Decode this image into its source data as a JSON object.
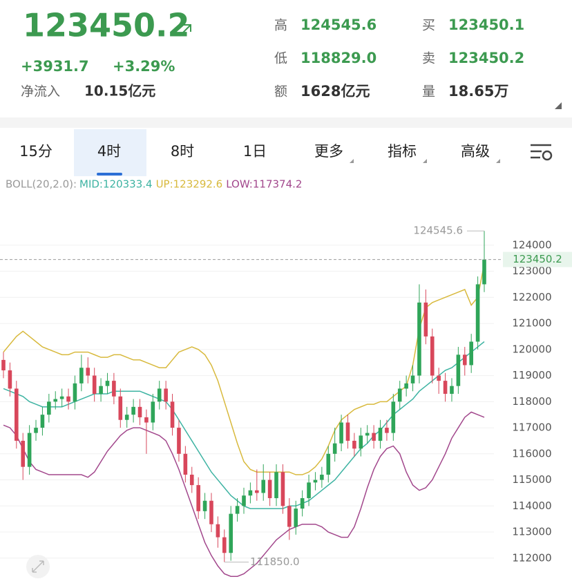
{
  "header": {
    "price": "123450.2",
    "change": "+3931.7",
    "change_pct": "+3.29%",
    "netflow_label": "净流入",
    "netflow_value": "10.15亿元",
    "stats": [
      {
        "label": "高",
        "value": "124545.6"
      },
      {
        "label": "低",
        "value": "118829.0"
      },
      {
        "label": "额",
        "value": "1628亿元"
      },
      {
        "label": "买",
        "value": "123450.1"
      },
      {
        "label": "卖",
        "value": "123450.2"
      },
      {
        "label": "量",
        "value": "18.65万"
      }
    ]
  },
  "tabs": {
    "items": [
      "15分",
      "4时",
      "8时",
      "1日",
      "更多",
      "指标",
      "高级"
    ],
    "active": 1
  },
  "chart_data": {
    "type": "candlestick",
    "indicator_label": "BOLL(20,2.0):",
    "up_color": "#2fa559",
    "down_color": "#d8475b",
    "open": [
      119600,
      119200,
      118500,
      116500,
      115500,
      116800,
      117000,
      117500,
      118000,
      118100,
      118200,
      118000,
      118700,
      119300,
      119000,
      118300,
      118600,
      118800,
      118200,
      117300,
      117500,
      117800,
      117400,
      117200,
      118000,
      118500,
      118000,
      117000,
      116000,
      115200,
      114800,
      113800,
      114200,
      113300,
      112800,
      112200,
      113700,
      114000,
      114400,
      114600,
      114500,
      115000,
      114300,
      115300,
      114000,
      113200,
      113900,
      114300,
      114900,
      115000,
      115200,
      116000,
      116400,
      117200,
      116500,
      116200,
      116700,
      116800,
      116500,
      117000,
      116800,
      118000,
      118500,
      118700,
      119000,
      121800,
      120500,
      119000,
      118800,
      118300,
      118600,
      119800,
      119400,
      120300,
      122500
    ],
    "high": [
      119900,
      119500,
      118800,
      116800,
      117100,
      117300,
      117800,
      118300,
      118400,
      118500,
      118500,
      119000,
      119800,
      119700,
      119300,
      118900,
      119100,
      119100,
      118500,
      117800,
      118100,
      118100,
      117700,
      118300,
      118800,
      118800,
      118300,
      117300,
      116300,
      115500,
      115100,
      114500,
      114500,
      113600,
      113100,
      114000,
      114300,
      114700,
      114900,
      115400,
      115600,
      115300,
      115600,
      115600,
      114300,
      114200,
      114600,
      115200,
      115300,
      115500,
      116300,
      117000,
      117500,
      117500,
      116800,
      117000,
      117100,
      117100,
      117300,
      117300,
      118300,
      118800,
      119000,
      119400,
      122500,
      122300,
      120800,
      119300,
      119100,
      118900,
      120100,
      120100,
      120600,
      122800,
      124545.6
    ],
    "low": [
      118900,
      118200,
      116200,
      115000,
      115200,
      116500,
      116700,
      117200,
      117700,
      117800,
      117700,
      117700,
      118400,
      118700,
      118000,
      118000,
      118300,
      117900,
      117000,
      117000,
      117200,
      117100,
      116000,
      116900,
      117700,
      117700,
      116700,
      115700,
      114900,
      114500,
      113500,
      113500,
      113000,
      112400,
      111850,
      111900,
      113400,
      113700,
      114100,
      114200,
      114200,
      114000,
      114000,
      113700,
      112700,
      112900,
      113600,
      114000,
      114600,
      114700,
      114900,
      115700,
      116100,
      116200,
      115900,
      115900,
      116400,
      116200,
      116200,
      116500,
      116500,
      117700,
      118200,
      118400,
      118700,
      120200,
      118700,
      118300,
      118000,
      118000,
      118300,
      119000,
      119100,
      120000,
      122200
    ],
    "close": [
      119200,
      118500,
      116500,
      115500,
      116800,
      117000,
      117500,
      118000,
      118100,
      118200,
      118000,
      118700,
      119300,
      119000,
      118300,
      118600,
      118800,
      118200,
      117300,
      117500,
      117800,
      117400,
      117200,
      118000,
      118500,
      118000,
      117000,
      116000,
      115200,
      114800,
      113800,
      114200,
      113300,
      112800,
      112200,
      113700,
      114000,
      114400,
      114600,
      114500,
      115000,
      114300,
      115300,
      114000,
      113200,
      113900,
      114300,
      114900,
      115000,
      115200,
      116000,
      116400,
      117200,
      116500,
      116200,
      116700,
      116800,
      116500,
      117000,
      116800,
      118000,
      118500,
      118700,
      119000,
      121800,
      120500,
      119000,
      118800,
      118300,
      118600,
      119800,
      119400,
      120300,
      122500,
      123450.2
    ],
    "series": [
      {
        "name": "MID:120333.4",
        "color": "#3db3a2",
        "values": [
          118500,
          118400,
          118300,
          118200,
          118000,
          117900,
          117800,
          117800,
          117800,
          117800,
          117900,
          118000,
          118100,
          118200,
          118300,
          118300,
          118300,
          118400,
          118400,
          118400,
          118400,
          118400,
          118300,
          118200,
          118100,
          118000,
          117700,
          117300,
          116900,
          116500,
          116100,
          115700,
          115300,
          115000,
          114700,
          114400,
          114200,
          114000,
          113900,
          113900,
          113900,
          113900,
          113900,
          113900,
          114000,
          114000,
          114100,
          114200,
          114400,
          114600,
          114800,
          115000,
          115300,
          115600,
          115900,
          116200,
          116400,
          116700,
          116900,
          117200,
          117500,
          117700,
          117900,
          118100,
          118400,
          118600,
          118800,
          119000,
          119200,
          119300,
          119500,
          119700,
          119900,
          120100,
          120300
        ]
      },
      {
        "name": "UP:123292.6",
        "color": "#d8b93c",
        "values": [
          119900,
          120200,
          120500,
          120700,
          120500,
          120300,
          120100,
          120000,
          119900,
          119800,
          119800,
          119900,
          119900,
          119900,
          119800,
          119700,
          119700,
          119800,
          119800,
          119700,
          119600,
          119600,
          119500,
          119400,
          119300,
          119300,
          119600,
          119900,
          120000,
          120100,
          120000,
          119800,
          119400,
          118800,
          118000,
          117200,
          116400,
          115700,
          115400,
          115300,
          115300,
          115300,
          115300,
          115300,
          115300,
          115200,
          115200,
          115300,
          115500,
          115800,
          116300,
          116900,
          117300,
          117500,
          117700,
          117800,
          117900,
          117900,
          118000,
          118000,
          118200,
          118400,
          118600,
          119400,
          120800,
          121600,
          121800,
          121900,
          122000,
          122100,
          122200,
          122300,
          121700,
          122000,
          123300
        ]
      },
      {
        "name": "LOW:117374.2",
        "color": "#a2478c",
        "values": [
          117100,
          117000,
          116700,
          116200,
          115700,
          115400,
          115300,
          115200,
          115200,
          115200,
          115200,
          115200,
          115200,
          115100,
          115300,
          115700,
          116100,
          116400,
          116700,
          116900,
          117000,
          117000,
          116900,
          116800,
          116700,
          116500,
          116000,
          115400,
          114700,
          114000,
          113300,
          112600,
          112100,
          111700,
          111400,
          111300,
          111300,
          111400,
          111600,
          111800,
          112100,
          112400,
          112700,
          112900,
          113100,
          113200,
          113300,
          113300,
          113300,
          113200,
          113000,
          112900,
          112800,
          112800,
          113200,
          113900,
          114700,
          115400,
          115900,
          116200,
          116300,
          116000,
          115300,
          114800,
          114600,
          114700,
          115000,
          115500,
          116000,
          116600,
          117000,
          117400,
          117600,
          117500,
          117400
        ]
      }
    ],
    "ylim": [
      111200,
      125850
    ],
    "yticks": [
      112000,
      113000,
      114000,
      115000,
      116000,
      117000,
      118000,
      119000,
      120000,
      121000,
      122000,
      123000,
      124000
    ],
    "grid": true,
    "max_label": 124545.6,
    "min_label": {
      "value": 111850,
      "label": "111850.0"
    },
    "last_price": 123450.2
  }
}
